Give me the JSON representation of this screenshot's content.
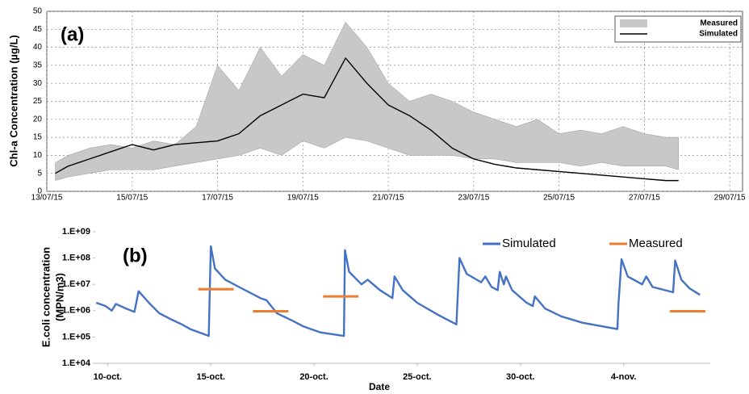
{
  "chart_data": [
    {
      "type": "line",
      "annotation": "(a)",
      "ylabel": "Chl-a Concentration (µg/L)",
      "xlim": [
        13,
        29.3
      ],
      "ylim": [
        0,
        50
      ],
      "grid": true,
      "ylog": false,
      "legend": "upper right",
      "xticks": [
        {
          "value": 13,
          "label": "13/07/15"
        },
        {
          "value": 15,
          "label": "15/07/15"
        },
        {
          "value": 17,
          "label": "17/07/15"
        },
        {
          "value": 19,
          "label": "19/07/15"
        },
        {
          "value": 21,
          "label": "21/07/15"
        },
        {
          "value": 23,
          "label": "23/07/15"
        },
        {
          "value": 25,
          "label": "25/07/15"
        },
        {
          "value": 27,
          "label": "27/07/15"
        },
        {
          "value": 29,
          "label": "29/07/15"
        }
      ],
      "yticks": [
        0,
        5,
        10,
        15,
        20,
        25,
        30,
        35,
        40,
        45,
        50
      ],
      "x": [
        13.2,
        13.5,
        14,
        14.5,
        15,
        15.5,
        16,
        16.5,
        17,
        17.5,
        18,
        18.5,
        19,
        19.5,
        20,
        20.5,
        21,
        21.5,
        22,
        22.5,
        23,
        23.5,
        24,
        24.5,
        25,
        25.5,
        26,
        26.5,
        27,
        27.5,
        27.8
      ],
      "series": [
        {
          "name": "Measured",
          "kind": "band",
          "color": "#c8c8c8",
          "high": [
            8,
            10,
            12,
            13,
            12,
            14,
            13,
            18,
            35,
            28,
            40,
            32,
            38,
            35,
            47,
            40,
            30,
            25,
            27,
            25,
            22,
            20,
            18,
            20,
            16,
            17,
            16,
            18,
            16,
            15,
            15
          ],
          "low": [
            3,
            4,
            5,
            6,
            6,
            6,
            7,
            8,
            9,
            10,
            12,
            10,
            14,
            12,
            15,
            14,
            12,
            10,
            10,
            10,
            9,
            9,
            8,
            8,
            8,
            7,
            8,
            7,
            7,
            7,
            6
          ]
        },
        {
          "name": "Simulated",
          "kind": "line",
          "color": "#000000",
          "values": [
            5,
            7,
            9,
            11,
            13,
            11.5,
            13,
            13.5,
            14,
            16,
            21,
            24,
            27,
            26,
            37,
            30,
            24,
            21,
            17,
            12,
            9,
            7.5,
            6.5,
            6,
            5.5,
            5,
            4.5,
            4,
            3.5,
            3,
            3
          ]
        }
      ]
    },
    {
      "type": "line",
      "annotation": "(b)",
      "ylabel": [
        "E.coli concentration",
        "(MPN/m3)"
      ],
      "xlabel": "Date",
      "xlim": [
        9.4,
        39.2
      ],
      "ylim": [
        10000,
        1000000000
      ],
      "ylog": true,
      "grid": false,
      "legend": "upper right",
      "xticks": [
        {
          "value": 10,
          "label": "10-oct."
        },
        {
          "value": 15,
          "label": "15-oct."
        },
        {
          "value": 20,
          "label": "20-oct."
        },
        {
          "value": 25,
          "label": "25-oct."
        },
        {
          "value": 30,
          "label": "30-oct."
        },
        {
          "value": 35,
          "label": "4-nov."
        }
      ],
      "yticks": [
        {
          "value": 10000,
          "label": "1.E+04"
        },
        {
          "value": 100000,
          "label": "1.E+05"
        },
        {
          "value": 1000000,
          "label": "1.E+06"
        },
        {
          "value": 10000000,
          "label": "1.E+07"
        },
        {
          "value": 100000000,
          "label": "1.E+08"
        },
        {
          "value": 1000000000,
          "label": "1.E+09"
        }
      ],
      "series": [
        {
          "name": "Simulated",
          "kind": "line",
          "color": "#4472c4",
          "x": [
            9.45,
            9.9,
            10.2,
            10.4,
            10.9,
            11.3,
            11.5,
            12,
            12.5,
            13,
            13.6,
            14,
            14.9,
            15,
            15.2,
            15.7,
            16.5,
            17.4,
            17.7,
            18.2,
            19,
            19.5,
            20.3,
            21.45,
            21.5,
            21.7,
            22.3,
            22.6,
            23.2,
            23.8,
            23.9,
            24.3,
            25,
            26,
            26.9,
            27.05,
            27.4,
            28.1,
            28.3,
            28.6,
            28.9,
            29,
            29.2,
            29.3,
            29.6,
            30.3,
            30.6,
            30.7,
            31.2,
            32,
            33,
            34.7,
            34.75,
            34.9,
            35.2,
            35.9,
            36.1,
            36.4,
            37.4,
            37.5,
            37.8,
            38.2,
            38.7
          ],
          "values": [
            2000000,
            1500000,
            1000000,
            1800000,
            1200000,
            900000,
            5500000,
            2000000,
            800000,
            500000,
            300000,
            200000,
            110000,
            280000000,
            40000000,
            15000000,
            7000000,
            3000000,
            2500000,
            800000,
            400000,
            250000,
            150000,
            110000,
            200000000,
            30000000,
            10000000,
            15000000,
            6000000,
            3000000,
            20000000,
            6000000,
            2000000,
            700000,
            300000,
            100000000,
            25000000,
            12000000,
            20000000,
            8000000,
            6000000,
            30000000,
            10000000,
            20000000,
            6000000,
            2000000,
            1500000,
            3500000,
            1200000,
            600000,
            350000,
            200000,
            1700000,
            90000000,
            20000000,
            10000000,
            20000000,
            8000000,
            5000000,
            80000000,
            15000000,
            7000000,
            4000000
          ]
        },
        {
          "name": "Measured",
          "kind": "dash",
          "color": "#ed7d31",
          "x": [
            15.25,
            17.9,
            21.3,
            38.1
          ],
          "values": [
            6500000,
            950000,
            3500000,
            950000
          ]
        }
      ]
    }
  ]
}
